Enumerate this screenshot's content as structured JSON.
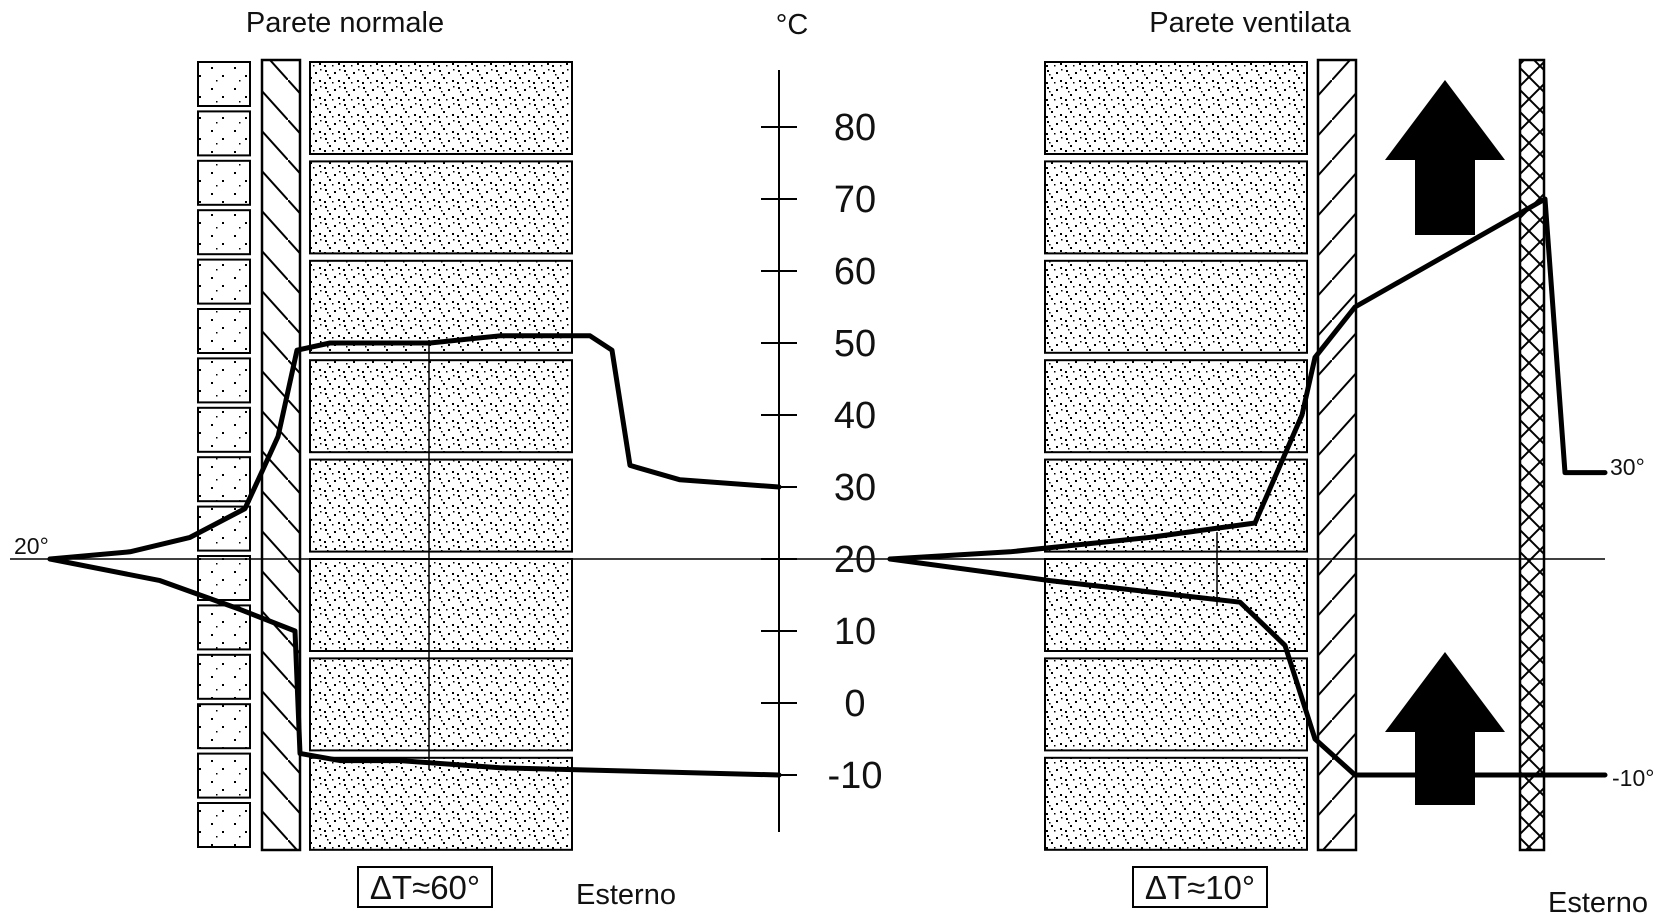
{
  "titles": {
    "left": "Parete normale",
    "right": "Parete ventilata",
    "unit": "°C"
  },
  "scale": {
    "ticks": [
      "80",
      "70",
      "60",
      "50",
      "40",
      "30",
      "20",
      "10",
      "0",
      "-10"
    ]
  },
  "annotations": {
    "left_inside_temp": "20°",
    "right_outside_high": "30°",
    "right_outside_low": "-10°",
    "delta_left": "ΔT≈60°",
    "delta_right": "ΔT≈10°",
    "exterior_left": "Esterno",
    "exterior_right": "Esterno"
  },
  "chart_data": {
    "type": "line",
    "title": "",
    "ylabel": "°C",
    "ylim": [
      -10,
      80
    ],
    "panels": [
      {
        "name": "Parete normale",
        "series": [
          {
            "values": [
              20,
              21,
              23,
              27,
              37,
              49,
              50,
              50,
              50,
              51,
              51,
              49,
              33,
              31,
              30
            ]
          },
          {
            "values": [
              20,
              17,
              13,
              10,
              -7,
              -8,
              -8,
              -9,
              -10
            ]
          }
        ],
        "delta_t": 60
      },
      {
        "name": "Parete ventilata",
        "series": [
          {
            "values": [
              20,
              21,
              23,
              25,
              40,
              48,
              55,
              70,
              32,
              32
            ]
          },
          {
            "values": [
              20,
              17,
              14,
              8,
              -5,
              -10,
              -10,
              -10
            ]
          }
        ],
        "delta_t": 10
      }
    ]
  },
  "colors": {
    "line": "#000000",
    "background": "#ffffff"
  }
}
